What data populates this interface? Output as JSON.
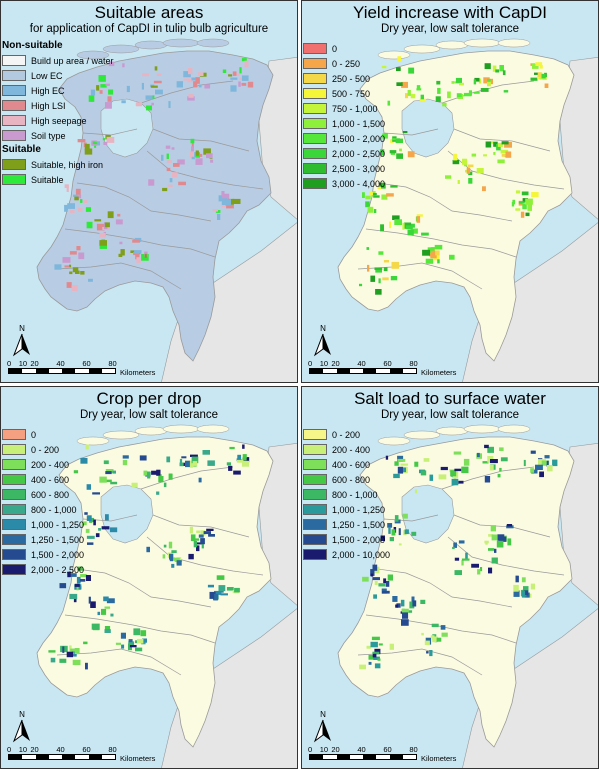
{
  "panels": [
    {
      "title": "Suitable areas",
      "subtitle": "for application of CapDI in tulip bulb agriculture",
      "legend_groups": [
        {
          "heading": "Non-suitable",
          "items": [
            {
              "label": "Build up area / water",
              "color": "#f5f5f5"
            },
            {
              "label": "Low EC",
              "color": "#b3c9e0"
            },
            {
              "label": "High EC",
              "color": "#7fb7dc"
            },
            {
              "label": "High LSI",
              "color": "#e08a8f"
            },
            {
              "label": "High seepage",
              "color": "#e8b4c2"
            },
            {
              "label": "Soil type",
              "color": "#c99ad0"
            }
          ]
        },
        {
          "heading": "Suitable",
          "items": [
            {
              "label": "Suitable, high iron",
              "color": "#7f9e1a"
            },
            {
              "label": "Suitable",
              "color": "#2ee83a"
            }
          ]
        }
      ]
    },
    {
      "title": "Yield increase with CapDI",
      "subtitle": "Dry year, low salt tolerance",
      "legend_groups": [
        {
          "heading": "",
          "items": [
            {
              "label": "0",
              "color": "#f07070"
            },
            {
              "label": "0 - 250",
              "color": "#f5a64a"
            },
            {
              "label": "250 - 500",
              "color": "#f5d84a"
            },
            {
              "label": "500 - 750",
              "color": "#f5f53a"
            },
            {
              "label": "750 - 1,000",
              "color": "#c4f53a"
            },
            {
              "label": "1,000 - 1,500",
              "color": "#8ef03a"
            },
            {
              "label": "1,500 - 2,000",
              "color": "#55e83a"
            },
            {
              "label": "2,000 - 2,500",
              "color": "#3ad63a"
            },
            {
              "label": "2,500 - 3,000",
              "color": "#2fbd2f"
            },
            {
              "label": "3,000 - 4,000",
              "color": "#1f9e1f"
            }
          ]
        }
      ]
    },
    {
      "title": "Crop per drop",
      "subtitle": "Dry year, low salt tolerance",
      "legend_groups": [
        {
          "heading": "",
          "items": [
            {
              "label": "0",
              "color": "#f5a080"
            },
            {
              "label": "0 - 200",
              "color": "#c8f078"
            },
            {
              "label": "200 - 400",
              "color": "#7ee05a"
            },
            {
              "label": "400 - 600",
              "color": "#45c845"
            },
            {
              "label": "600 - 800",
              "color": "#3cb864"
            },
            {
              "label": "800 - 1,000",
              "color": "#3aa88a"
            },
            {
              "label": "1,000 - 1,250",
              "color": "#2a8aa8"
            },
            {
              "label": "1,250 - 1,500",
              "color": "#2a6aa0"
            },
            {
              "label": "1,500 - 2,000",
              "color": "#254a90"
            },
            {
              "label": "2,000 - 2,500",
              "color": "#1a1a6e"
            }
          ]
        }
      ]
    },
    {
      "title": "Salt load to surface water",
      "subtitle": "Dry year, low salt tolerance",
      "legend_groups": [
        {
          "heading": "",
          "items": [
            {
              "label": "0 - 200",
              "color": "#f5f58a"
            },
            {
              "label": "200 - 400",
              "color": "#c8f078"
            },
            {
              "label": "400 - 600",
              "color": "#7ee05a"
            },
            {
              "label": "600 - 800",
              "color": "#45c845"
            },
            {
              "label": "800 - 1,000",
              "color": "#3cb864"
            },
            {
              "label": "1,000 - 1,250",
              "color": "#2a9a9a"
            },
            {
              "label": "1,250 - 1,500",
              "color": "#2a6aa0"
            },
            {
              "label": "1,500 - 2,000",
              "color": "#254a90"
            },
            {
              "label": "2,000 - 10,000",
              "color": "#1a1a6e"
            }
          ]
        }
      ]
    }
  ],
  "map_colors": {
    "water": "#c9e7f2",
    "land_other": "#e6e6e6",
    "land_nl_panel1": "#b8cce3",
    "land_nl_other": "#fbfbe2",
    "boundary": "#9a9a9a"
  },
  "north_label": "N",
  "scale": {
    "ticks": [
      "0",
      "10",
      "20",
      "40",
      "60",
      "80"
    ],
    "unit": "Kilometers"
  }
}
